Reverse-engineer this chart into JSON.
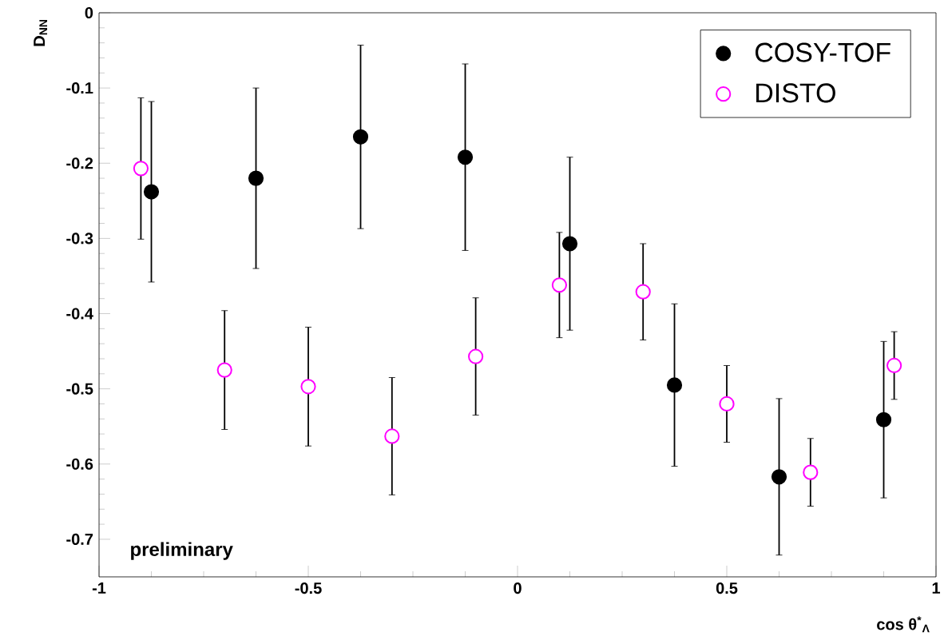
{
  "chart_data": {
    "type": "scatter",
    "xlabel": "cos θ$^{*}$$_{Λ}$",
    "ylabel": "D$_{NN}$",
    "annotations": [
      "preliminary"
    ],
    "xlim": [
      -1,
      1
    ],
    "ylim": [
      -0.75,
      0
    ],
    "xticks": [
      -1,
      -0.5,
      0,
      0.5,
      1
    ],
    "yticks": [
      -0.7,
      -0.6,
      -0.5,
      -0.4,
      -0.3,
      -0.2,
      -0.1,
      0
    ],
    "legend": "top right",
    "grid": false,
    "series": [
      {
        "name": "COSY-TOF",
        "color": "#000000",
        "marker": "circle",
        "x": [
          -0.875,
          -0.625,
          -0.375,
          -0.125,
          0.125,
          0.375,
          0.625,
          0.875
        ],
        "values": [
          -0.238,
          -0.22,
          -0.165,
          -0.192,
          -0.307,
          -0.495,
          -0.617,
          -0.541
        ],
        "errors": [
          0.12,
          0.12,
          0.122,
          0.124,
          0.115,
          0.108,
          0.104,
          0.104
        ]
      },
      {
        "name": "DISTO",
        "color": "#ff00ff",
        "marker": "circle",
        "x": [
          -0.9,
          -0.7,
          -0.5,
          -0.3,
          -0.1,
          0.1,
          0.3,
          0.5,
          0.7,
          0.9
        ],
        "values": [
          -0.207,
          -0.475,
          -0.497,
          -0.563,
          -0.457,
          -0.362,
          -0.371,
          -0.52,
          -0.611,
          -0.469
        ],
        "errors": [
          0.094,
          0.079,
          0.079,
          0.078,
          0.078,
          0.07,
          0.064,
          0.051,
          0.045,
          0.045
        ]
      }
    ]
  }
}
